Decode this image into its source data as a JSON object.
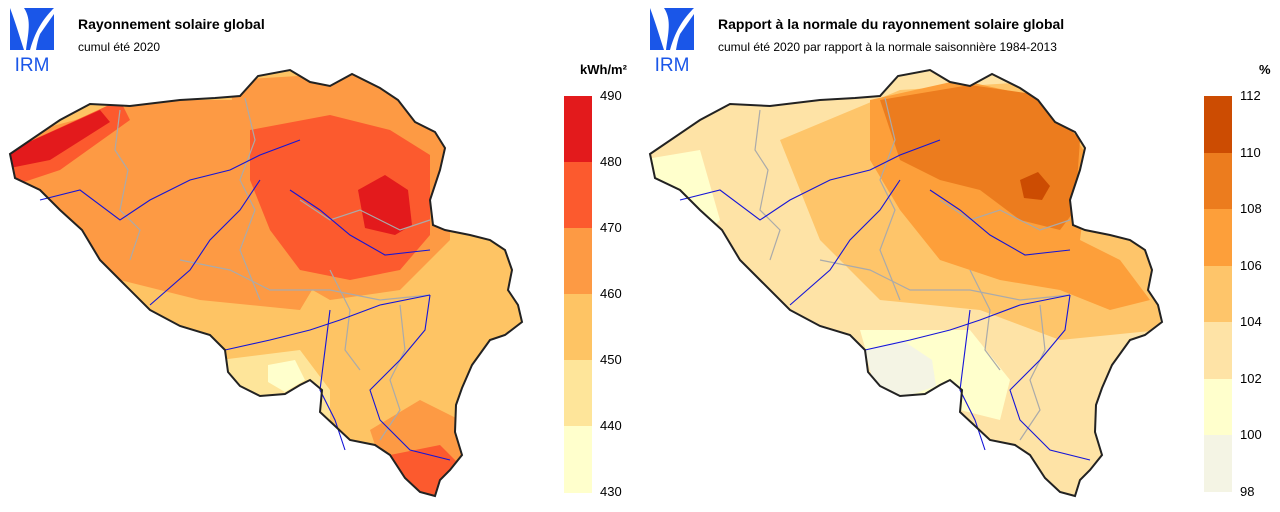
{
  "logo": {
    "text": "IRM",
    "color": "#1a56e8"
  },
  "panels": [
    {
      "title": "Rayonnement solaire global",
      "subtitle": "cumul été 2020",
      "unit": "kWh/m²",
      "legend": {
        "ticks": [
          "490",
          "480",
          "470",
          "460",
          "450",
          "440",
          "430"
        ],
        "colors": [
          "#e31a1c",
          "#fc5a2e",
          "#fd9a44",
          "#fec464",
          "#fee59a",
          "#ffffcc"
        ]
      },
      "map_colors": {
        "base": "#fec464",
        "zones": [
          "#fd9a44",
          "#fc5a2e",
          "#e31a1c",
          "#fee59a",
          "#ffffcc"
        ]
      }
    },
    {
      "title": "Rapport à la normale du rayonnement solaire global",
      "subtitle": "cumul été 2020 par rapport à la normale saisonnière 1984-2013",
      "unit": "%",
      "legend": {
        "ticks": [
          "112",
          "110",
          "108",
          "106",
          "104",
          "102",
          "100",
          "98"
        ],
        "colors": [
          "#cc4c02",
          "#ec7c1e",
          "#fd9f3a",
          "#fec56a",
          "#fee3a6",
          "#ffffcc",
          "#f4f4e4"
        ]
      },
      "map_colors": {
        "base": "#fee3a6",
        "zones": [
          "#fec56a",
          "#fd9f3a",
          "#ec7c1e",
          "#cc4c02",
          "#ffffcc",
          "#f4f4e4"
        ]
      }
    }
  ],
  "colors": {
    "border": "#222222",
    "rivers": "#1515d8",
    "regions": "#aaaaaa"
  }
}
